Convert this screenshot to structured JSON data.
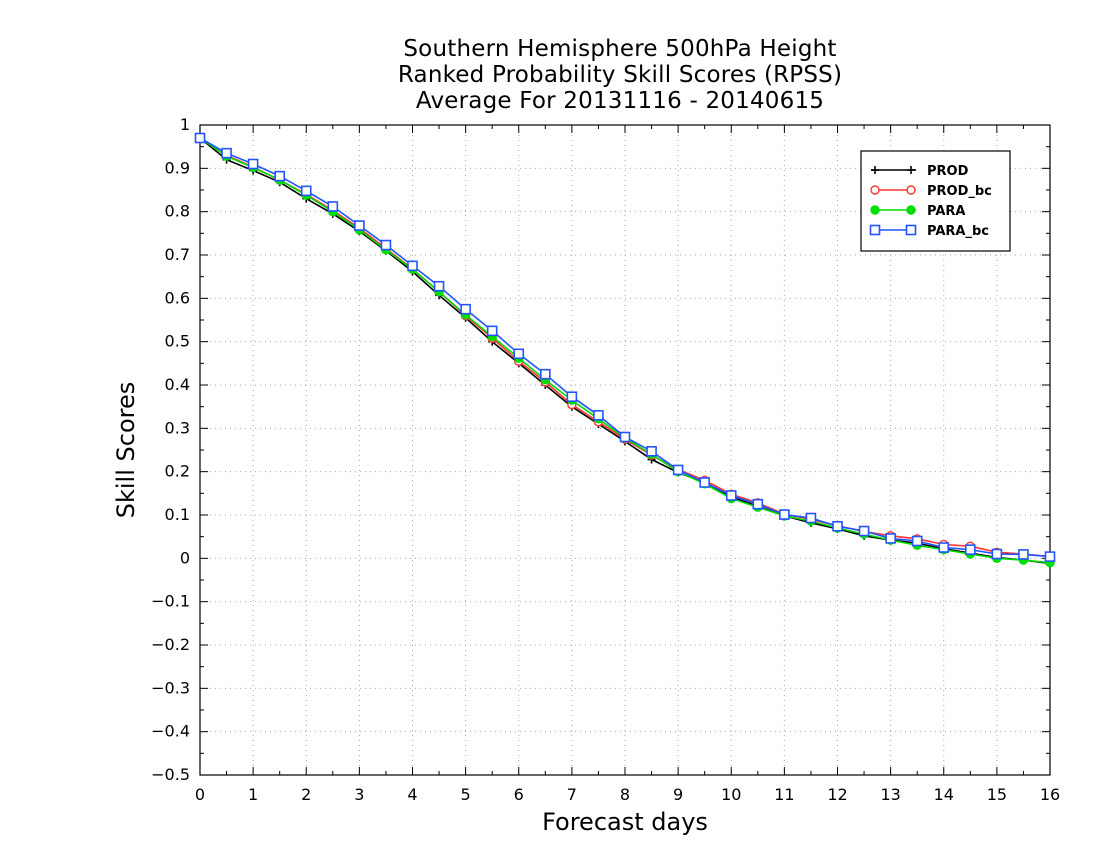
{
  "chart_data": {
    "type": "line",
    "title": [
      "Southern Hemisphere 500hPa Height",
      "Ranked Probability Skill Scores (RPSS)",
      "Average For 20131116 - 20140615"
    ],
    "xlabel": "Forecast days",
    "ylabel": "Skill Scores",
    "xlim": [
      0,
      16
    ],
    "ylim": [
      -0.5,
      1
    ],
    "x_ticks": [
      "0",
      "1",
      "2",
      "3",
      "4",
      "5",
      "6",
      "7",
      "8",
      "9",
      "10",
      "11",
      "12",
      "13",
      "14",
      "15",
      "16"
    ],
    "y_ticks": [
      "1",
      "0.9",
      "0.8",
      "0.7",
      "0.6",
      "0.5",
      "0.4",
      "0.3",
      "0.2",
      "0.1",
      "0",
      "-0.1",
      "-0.2",
      "-0.3",
      "-0.4",
      "-0.5"
    ],
    "grid": true,
    "legend_position": "top-right",
    "x": [
      0,
      0.5,
      1,
      1.5,
      2,
      2.5,
      3,
      3.5,
      4,
      4.5,
      5,
      5.5,
      6,
      6.5,
      7,
      7.5,
      8,
      8.5,
      9,
      9.5,
      10,
      10.5,
      11,
      11.5,
      12,
      12.5,
      13,
      13.5,
      14,
      14.5,
      15,
      15.5,
      16
    ],
    "series": [
      {
        "name": "PROD",
        "color": "#000000",
        "marker": "plus",
        "values": [
          0.97,
          0.92,
          0.895,
          0.868,
          0.83,
          0.795,
          0.755,
          0.71,
          0.662,
          0.607,
          0.555,
          0.5,
          0.45,
          0.4,
          0.35,
          0.31,
          0.27,
          0.228,
          0.198,
          0.175,
          0.142,
          0.12,
          0.098,
          0.082,
          0.068,
          0.052,
          0.042,
          0.035,
          0.022,
          0.012,
          0.002,
          -0.004,
          -0.012
        ]
      },
      {
        "name": "PROD_bc",
        "color": "#ff3333",
        "marker": "open-circle",
        "values": [
          0.97,
          0.93,
          0.903,
          0.873,
          0.84,
          0.803,
          0.762,
          0.715,
          0.668,
          0.615,
          0.56,
          0.508,
          0.455,
          0.407,
          0.355,
          0.315,
          0.275,
          0.238,
          0.205,
          0.18,
          0.148,
          0.128,
          0.102,
          0.09,
          0.075,
          0.062,
          0.052,
          0.045,
          0.032,
          0.028,
          0.014,
          0.01,
          0.004
        ]
      },
      {
        "name": "PARA",
        "color": "#00dd00",
        "marker": "filled-circle",
        "values": [
          0.97,
          0.928,
          0.902,
          0.873,
          0.838,
          0.8,
          0.758,
          0.712,
          0.667,
          0.615,
          0.562,
          0.512,
          0.462,
          0.412,
          0.365,
          0.322,
          0.278,
          0.24,
          0.2,
          0.172,
          0.138,
          0.118,
          0.098,
          0.086,
          0.07,
          0.056,
          0.042,
          0.03,
          0.02,
          0.01,
          0.0,
          -0.004,
          -0.01
        ]
      },
      {
        "name": "PARA_bc",
        "color": "#2255ff",
        "marker": "open-square",
        "values": [
          0.97,
          0.935,
          0.91,
          0.882,
          0.848,
          0.812,
          0.768,
          0.723,
          0.675,
          0.628,
          0.575,
          0.525,
          0.472,
          0.425,
          0.373,
          0.33,
          0.28,
          0.247,
          0.204,
          0.175,
          0.145,
          0.125,
          0.101,
          0.093,
          0.074,
          0.063,
          0.046,
          0.04,
          0.025,
          0.02,
          0.01,
          0.009,
          0.004
        ]
      }
    ]
  }
}
